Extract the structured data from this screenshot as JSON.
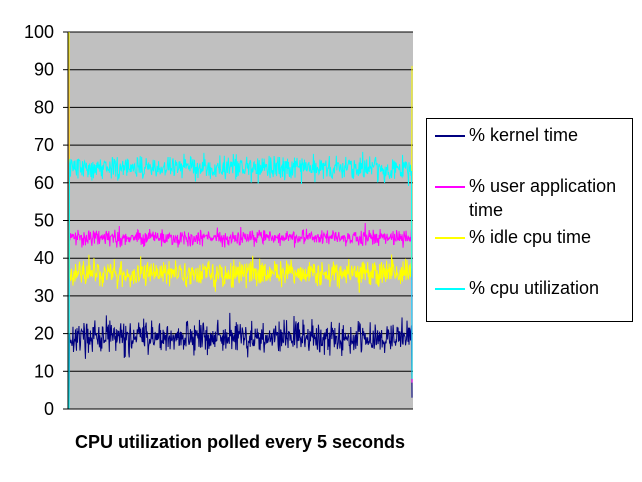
{
  "chart_data": {
    "type": "line",
    "xlabel": "CPU utilization polled every 5 seconds",
    "ylabel": "",
    "ylim": [
      0,
      100
    ],
    "yticks": [
      "0",
      "10",
      "20",
      "30",
      "40",
      "50",
      "60",
      "70",
      "80",
      "90",
      "100"
    ],
    "grid": true,
    "plot_background": "#c0c0c0",
    "legend_position": "right",
    "series": [
      {
        "name": "% kernel time",
        "color": "#000080",
        "mean": 19,
        "spread": 3.2,
        "start": 0,
        "end": 3
      },
      {
        "name": "% user application time",
        "color": "#ff00ff",
        "mean": 45.5,
        "spread": 1.6,
        "start": 100,
        "end": 7
      },
      {
        "name": "% idle cpu time",
        "color": "#ffff00",
        "mean": 36,
        "spread": 2.6,
        "start": 100,
        "end": 91
      },
      {
        "name": "% cpu utilization",
        "color": "#00ffff",
        "mean": 64,
        "spread": 2.4,
        "start": 0,
        "end": 8
      }
    ]
  }
}
